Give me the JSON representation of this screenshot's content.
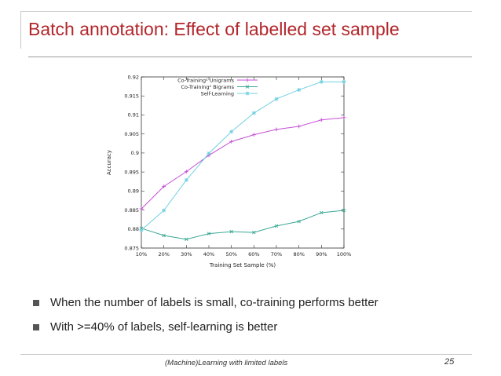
{
  "slide": {
    "title": "Batch annotation: Effect of labelled set sample",
    "bullets": [
      "When the number of labels is small, co-training performs better",
      "With >=40% of labels, self-learning is better"
    ],
    "footer": "(Machine)Learning with limited labels",
    "page_number": "25"
  },
  "chart_data": {
    "type": "line",
    "xlabel": "Training Set Sample (%)",
    "ylabel": "Accuracy",
    "categories": [
      "10%",
      "20%",
      "30%",
      "40%",
      "50%",
      "60%",
      "70%",
      "80%",
      "90%",
      "100%"
    ],
    "ylim": [
      0.875,
      0.92
    ],
    "yticks": [
      "0.875",
      "0.88",
      "0.885",
      "0.89",
      "0.895",
      "0.9",
      "0.905",
      "0.91",
      "0.915",
      "0.92"
    ],
    "legend_position": "top-right",
    "grid": false,
    "series": [
      {
        "name": "Co-Training¹ Unigrams",
        "color": "#c64fd6",
        "marker": "+",
        "values": [
          0.8853,
          0.8912,
          0.8951,
          0.8994,
          0.903,
          0.9048,
          0.9062,
          0.907,
          0.9087,
          0.9093
        ]
      },
      {
        "name": "Co-Training¹ Bigrams",
        "color": "#3aa895",
        "marker": "x",
        "values": [
          0.8802,
          0.8783,
          0.8773,
          0.8788,
          0.8793,
          0.8791,
          0.8808,
          0.882,
          0.8843,
          0.8849
        ]
      },
      {
        "name": "Self-Learning",
        "color": "#72d0e0",
        "marker": "*",
        "values": [
          0.8797,
          0.8849,
          0.8929,
          0.8999,
          0.9056,
          0.9105,
          0.9142,
          0.9166,
          0.9187,
          0.9187
        ]
      }
    ]
  }
}
